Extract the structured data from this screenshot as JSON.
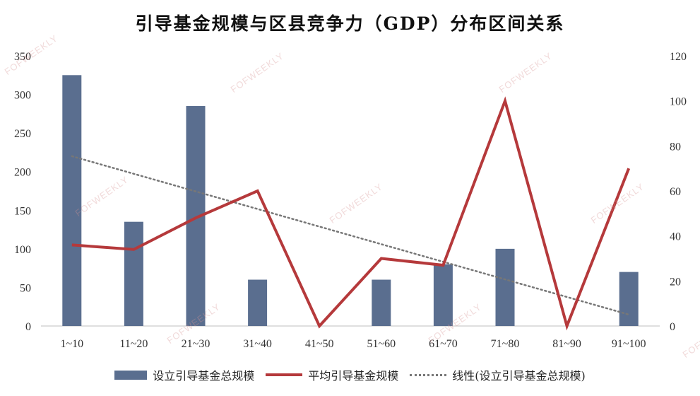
{
  "chart_data": {
    "type": "bar",
    "title": "引导基金规模与区县竞争力（GDP）分布区间关系",
    "categories": [
      "1~10",
      "11~20",
      "21~30",
      "31~40",
      "41~50",
      "51~60",
      "61~70",
      "71~80",
      "81~90",
      "91~100"
    ],
    "series": [
      {
        "name": "设立引导基金总规模",
        "type": "bar",
        "axis": "left",
        "color": "#5a6e8f",
        "values": [
          325,
          135,
          285,
          60,
          0,
          60,
          80,
          100,
          0,
          70
        ]
      },
      {
        "name": "平均引导基金规模",
        "type": "line",
        "axis": "right",
        "color": "#b5393b",
        "values": [
          36,
          34,
          48,
          60,
          0,
          30,
          27,
          100,
          0,
          70
        ]
      },
      {
        "name": "线性(设立引导基金总规模)",
        "type": "trendline",
        "axis": "left",
        "color": "#777777",
        "values": [
          220,
          197.2,
          174.4,
          151.6,
          128.8,
          106.0,
          83.2,
          60.4,
          37.6,
          14.8
        ]
      }
    ],
    "y_left": {
      "min": 0,
      "max": 350,
      "ticks": [
        0,
        50,
        100,
        150,
        200,
        250,
        300,
        350
      ]
    },
    "y_right": {
      "min": 0,
      "max": 120,
      "ticks": [
        0,
        20,
        40,
        60,
        80,
        100,
        120
      ]
    },
    "grid": false,
    "legend_position": "bottom"
  },
  "watermark": "FOFWEEKLY"
}
